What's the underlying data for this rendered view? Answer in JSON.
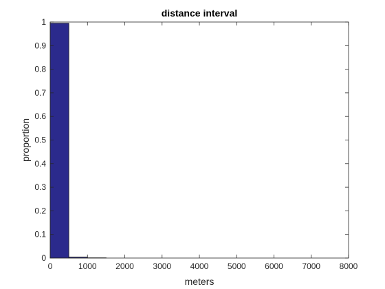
{
  "chart_data": {
    "type": "bar",
    "title": "distance interval",
    "xlabel": "meters",
    "ylabel": "proportion",
    "xlim": [
      0,
      8000
    ],
    "ylim": [
      0,
      1
    ],
    "bin_width": 500,
    "bins": [
      {
        "x_start": 0,
        "x_end": 500,
        "value": 0.995
      },
      {
        "x_start": 500,
        "x_end": 1000,
        "value": 0.004
      },
      {
        "x_start": 1000,
        "x_end": 1500,
        "value": 0.001
      }
    ],
    "x_ticks": [
      0,
      1000,
      2000,
      3000,
      4000,
      5000,
      6000,
      7000,
      8000
    ],
    "y_ticks": [
      0,
      0.1,
      0.2,
      0.3,
      0.4,
      0.5,
      0.6,
      0.7,
      0.8,
      0.9,
      1
    ],
    "x_tick_labels": [
      "0",
      "1000",
      "2000",
      "3000",
      "4000",
      "5000",
      "6000",
      "7000",
      "8000"
    ],
    "y_tick_labels": [
      "0",
      "0.1",
      "0.2",
      "0.3",
      "0.4",
      "0.5",
      "0.6",
      "0.7",
      "0.8",
      "0.9",
      "1"
    ],
    "grid": false,
    "legend": "none",
    "bar_color": "#2b2a8c",
    "bar_edge_color": "#1a1a1a",
    "axis_color": "#262626"
  }
}
